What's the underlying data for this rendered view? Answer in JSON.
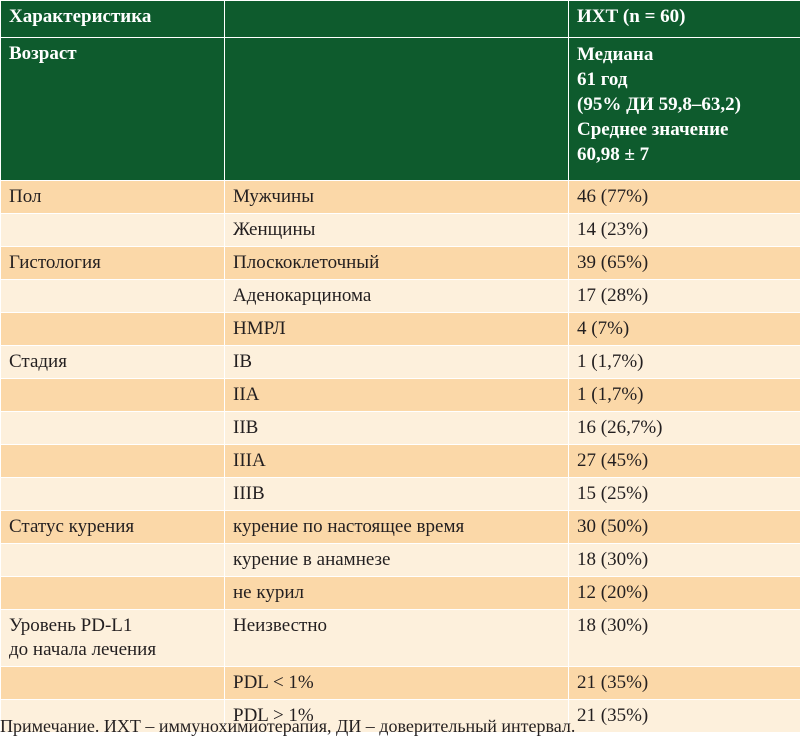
{
  "header": {
    "col1": "Характеристика",
    "col2": "",
    "col3": "ИХТ (n = 60)"
  },
  "age": {
    "label": "Возраст",
    "lines": [
      "Медиана",
      "61 год",
      "(95% ДИ 59,8–63,2)",
      "Среднее значение",
      "60,98 ± 7"
    ]
  },
  "rows": [
    {
      "group": "Пол",
      "item": "Мужчины",
      "value": "46 (77%)"
    },
    {
      "group": "",
      "item": "Женщины",
      "value": "14 (23%)"
    },
    {
      "group": "Гистология",
      "item": "Плоскоклеточный",
      "value": "39 (65%)"
    },
    {
      "group": "",
      "item": "Аденокарцинома",
      "value": "17 (28%)"
    },
    {
      "group": "",
      "item": "НМРЛ",
      "value": "4 (7%)"
    },
    {
      "group": "Стадия",
      "item": "IB",
      "value": "1 (1,7%)"
    },
    {
      "group": "",
      "item": "IIA",
      "value": "1 (1,7%)"
    },
    {
      "group": "",
      "item": "IIB",
      "value": "16 (26,7%)"
    },
    {
      "group": "",
      "item": "IIIA",
      "value": "27 (45%)"
    },
    {
      "group": "",
      "item": "IIIB",
      "value": "15 (25%)"
    },
    {
      "group": "Статус курения",
      "item": "курение по настоящее время",
      "value": "30 (50%)"
    },
    {
      "group": "",
      "item": "курение в анамнезе",
      "value": "18 (30%)"
    },
    {
      "group": "",
      "item": "не курил",
      "value": "12 (20%)"
    },
    {
      "group": "Уровень PD-L1",
      "group2": "до начала лечения",
      "item": "Неизвестно",
      "value": "18 (30%)"
    },
    {
      "group": "",
      "item": "PDL < 1%",
      "value": "21 (35%)"
    },
    {
      "group": "",
      "item": "PDL > 1%",
      "value": "21 (35%)"
    }
  ],
  "note": "Примечание. ИХТ – иммунохимиотерапия, ДИ – доверительный интервал.",
  "colors": {
    "header": "#0e5b2d",
    "row_odd": "#fbd8a8",
    "row_even": "#fdf0dc"
  }
}
